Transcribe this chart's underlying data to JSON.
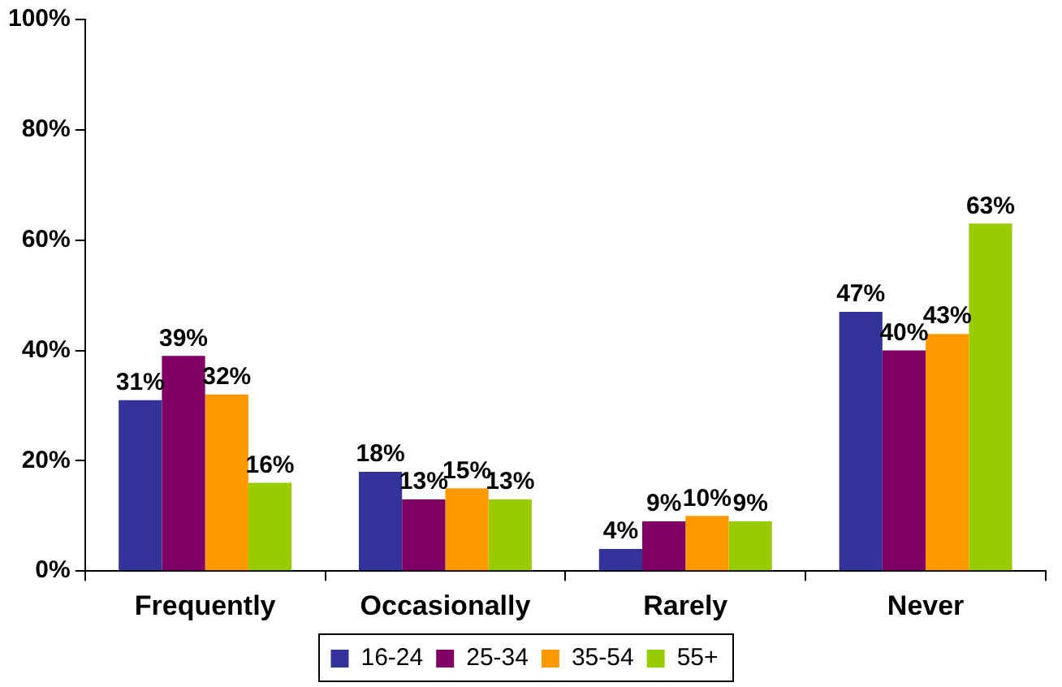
{
  "chart_data": {
    "type": "bar",
    "categories": [
      "Frequently",
      "Occasionally",
      "Rarely",
      "Never"
    ],
    "series": [
      {
        "name": "16-24",
        "color": "#333399",
        "values": [
          31,
          18,
          4,
          47
        ],
        "value_labels": [
          "31%",
          "18%",
          "4%",
          "47%"
        ]
      },
      {
        "name": "25-34",
        "color": "#800066",
        "values": [
          39,
          13,
          9,
          40
        ],
        "value_labels": [
          "39%",
          "13%",
          "9%",
          "40%"
        ]
      },
      {
        "name": "35-54",
        "color": "#ff9900",
        "values": [
          32,
          15,
          10,
          43
        ],
        "value_labels": [
          "32%",
          "15%",
          "10%",
          "43%"
        ]
      },
      {
        "name": "55+",
        "color": "#99cc00",
        "values": [
          16,
          13,
          9,
          63
        ],
        "value_labels": [
          "16%",
          "13%",
          "9%",
          "63%"
        ]
      }
    ],
    "ylim": [
      0,
      100
    ],
    "yticks": [
      {
        "value": 0,
        "label": "0%"
      },
      {
        "value": 20,
        "label": "20%"
      },
      {
        "value": 40,
        "label": "40%"
      },
      {
        "value": 60,
        "label": "60%"
      },
      {
        "value": 80,
        "label": "80%"
      },
      {
        "value": 100,
        "label": "100%"
      }
    ],
    "grid": false,
    "legend": "bottom"
  }
}
